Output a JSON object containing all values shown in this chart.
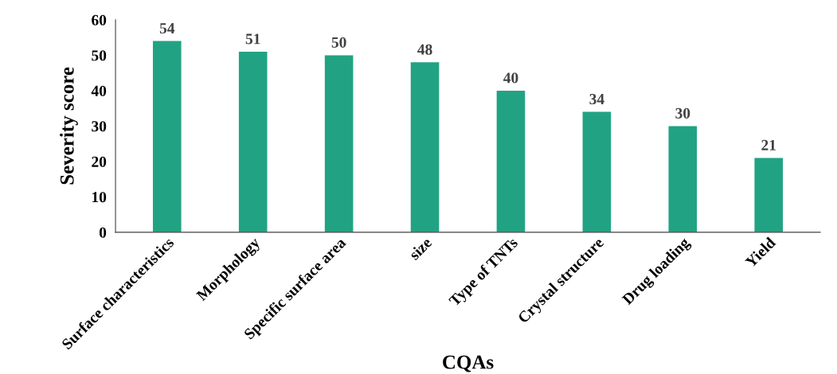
{
  "chart_data": {
    "type": "bar",
    "xlabel": "CQAs",
    "ylabel": "Severity score",
    "categories": [
      "Surface characteristics",
      "Morphology",
      "Specific surface area",
      "size",
      "Type of TNTs",
      "Crystal structure",
      "Drug loading",
      "Yield"
    ],
    "values": [
      54,
      51,
      50,
      48,
      40,
      34,
      30,
      21
    ],
    "color": "#21a383",
    "ylim": [
      0,
      60
    ],
    "yticks": [
      0,
      10,
      20,
      30,
      40,
      50,
      60
    ],
    "data_labels": true,
    "grid": false,
    "legend": false
  }
}
